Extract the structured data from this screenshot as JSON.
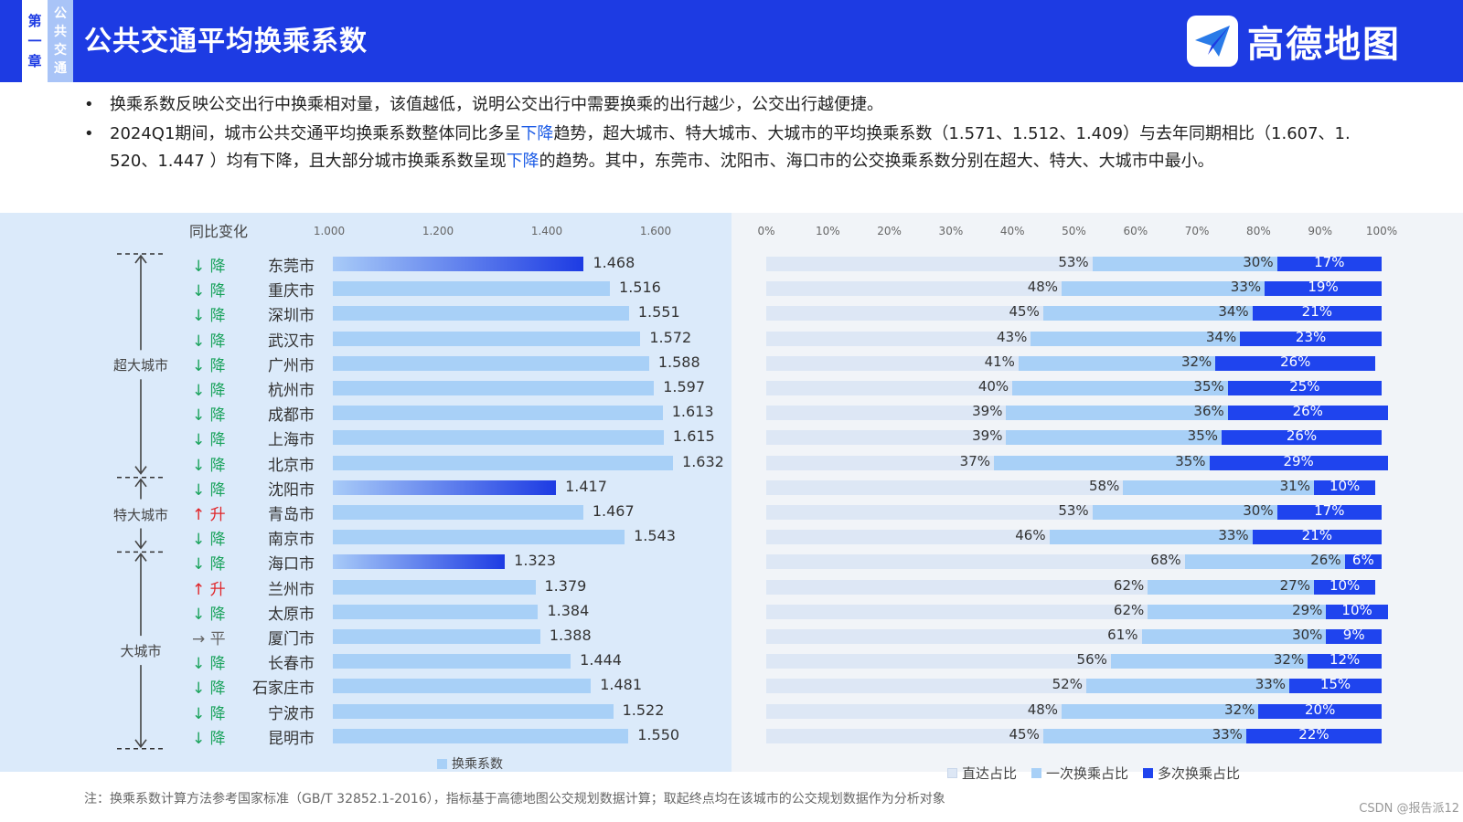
{
  "header": {
    "chapter_chars": [
      "第",
      "一",
      "章"
    ],
    "section_chars": [
      "公",
      "共",
      "交",
      "通"
    ],
    "title": "公共交通平均换乘系数",
    "brand": "高德地图",
    "brand_color": "#1d3be3"
  },
  "bullets": [
    {
      "parts": [
        "换乘系数反映公交出行中换乘相对量，该值越低，说明公交出行中需要换乘的出行越少，公交出行越便捷。"
      ]
    },
    {
      "parts": [
        "2024Q1期间，城市公共交通平均换乘系数整体同比多呈",
        "下降",
        "趋势，超大城市、特大城市、大城市的平均换乘系数（1.571、1.512、1.409）与去年同期相比（1.607、1. 520、1.447 ）均有下降，且大部分城市换乘系数呈现",
        "下降",
        "的趋势。其中，东莞市、沈阳市、海口市的公交换乘系数分别在超大、特大、大城市中最小。"
      ]
    }
  ],
  "chart_data": [
    {
      "type": "bar",
      "orientation": "horizontal",
      "title": "同比变化",
      "legend": [
        "换乘系数"
      ],
      "xlim": [
        1.0,
        1.75
      ],
      "xticks": [
        "1.000",
        "1.200",
        "1.400",
        "1.600"
      ],
      "tiers": [
        {
          "name": "超大城市",
          "count": 9
        },
        {
          "name": "特大城市",
          "count": 3
        },
        {
          "name": "大城市",
          "count": 8
        }
      ],
      "categories": [
        "东莞市",
        "重庆市",
        "深圳市",
        "武汉市",
        "广州市",
        "杭州市",
        "成都市",
        "上海市",
        "北京市",
        "沈阳市",
        "青岛市",
        "南京市",
        "海口市",
        "兰州市",
        "太原市",
        "厦门市",
        "长春市",
        "石家庄市",
        "宁波市",
        "昆明市"
      ],
      "values": [
        1.468,
        1.516,
        1.551,
        1.572,
        1.588,
        1.597,
        1.613,
        1.615,
        1.632,
        1.417,
        1.467,
        1.543,
        1.323,
        1.379,
        1.384,
        1.388,
        1.444,
        1.481,
        1.522,
        1.55
      ],
      "value_labels": [
        "1.468",
        "1.516",
        "1.551",
        "1.572",
        "1.588",
        "1.597",
        "1.613",
        "1.615",
        "1.632",
        "1.417",
        "1.467",
        "1.543",
        "1.323",
        "1.379",
        "1.384",
        "1.388",
        "1.444",
        "1.481",
        "1.522",
        "1.550"
      ],
      "yoy": [
        {
          "arrow": "↓",
          "text": "降",
          "trend": "down"
        },
        {
          "arrow": "↓",
          "text": "降",
          "trend": "down"
        },
        {
          "arrow": "↓",
          "text": "降",
          "trend": "down"
        },
        {
          "arrow": "↓",
          "text": "降",
          "trend": "down"
        },
        {
          "arrow": "↓",
          "text": "降",
          "trend": "down"
        },
        {
          "arrow": "↓",
          "text": "降",
          "trend": "down"
        },
        {
          "arrow": "↓",
          "text": "降",
          "trend": "down"
        },
        {
          "arrow": "↓",
          "text": "降",
          "trend": "down"
        },
        {
          "arrow": "↓",
          "text": "降",
          "trend": "down"
        },
        {
          "arrow": "↓",
          "text": "降",
          "trend": "down"
        },
        {
          "arrow": "↑",
          "text": "升",
          "trend": "up"
        },
        {
          "arrow": "↓",
          "text": "降",
          "trend": "down"
        },
        {
          "arrow": "↓",
          "text": "降",
          "trend": "down"
        },
        {
          "arrow": "↑",
          "text": "升",
          "trend": "up"
        },
        {
          "arrow": "↓",
          "text": "降",
          "trend": "down"
        },
        {
          "arrow": "→",
          "text": "平",
          "trend": "flat"
        },
        {
          "arrow": "↓",
          "text": "降",
          "trend": "down"
        },
        {
          "arrow": "↓",
          "text": "降",
          "trend": "down"
        },
        {
          "arrow": "↓",
          "text": "降",
          "trend": "down"
        },
        {
          "arrow": "↓",
          "text": "降",
          "trend": "down"
        }
      ],
      "highlighted": [
        "东莞市",
        "沈阳市",
        "海口市"
      ]
    },
    {
      "type": "bar",
      "orientation": "horizontal",
      "stacked": true,
      "percent": true,
      "xticks": [
        "0%",
        "10%",
        "20%",
        "30%",
        "40%",
        "50%",
        "60%",
        "70%",
        "80%",
        "90%",
        "100%"
      ],
      "categories": [
        "东莞市",
        "重庆市",
        "深圳市",
        "武汉市",
        "广州市",
        "杭州市",
        "成都市",
        "上海市",
        "北京市",
        "沈阳市",
        "青岛市",
        "南京市",
        "海口市",
        "兰州市",
        "太原市",
        "厦门市",
        "长春市",
        "石家庄市",
        "宁波市",
        "昆明市"
      ],
      "series": [
        {
          "name": "直达占比",
          "color": "#dde7f5",
          "values": [
            53,
            48,
            45,
            43,
            41,
            40,
            39,
            39,
            37,
            58,
            53,
            46,
            68,
            62,
            62,
            61,
            56,
            52,
            48,
            45
          ]
        },
        {
          "name": "一次换乘占比",
          "color": "#a8d0f7",
          "values": [
            30,
            33,
            34,
            34,
            32,
            35,
            36,
            35,
            35,
            31,
            30,
            33,
            26,
            27,
            29,
            30,
            32,
            33,
            32,
            33
          ]
        },
        {
          "name": "多次换乘占比",
          "color": "#1f44ee",
          "values": [
            17,
            19,
            21,
            23,
            26,
            25,
            26,
            26,
            29,
            10,
            17,
            21,
            6,
            10,
            10,
            9,
            12,
            15,
            20,
            22
          ]
        }
      ]
    }
  ],
  "colors": {
    "down": "#1aa35c",
    "up": "#e0262a",
    "flat": "#666666",
    "bar": "#a8d0f7",
    "bar_highlight_start": "#a8cbf8",
    "bar_highlight_end": "#1d3be3"
  },
  "footnote": "注：换乘系数计算方法参考国家标准（GB/T 32852.1-2016），指标基于高德地图公交规划数据计算；取起终点均在该城市的公交规划数据作为分析对象",
  "watermark": "CSDN @报告派",
  "page_number": "12"
}
